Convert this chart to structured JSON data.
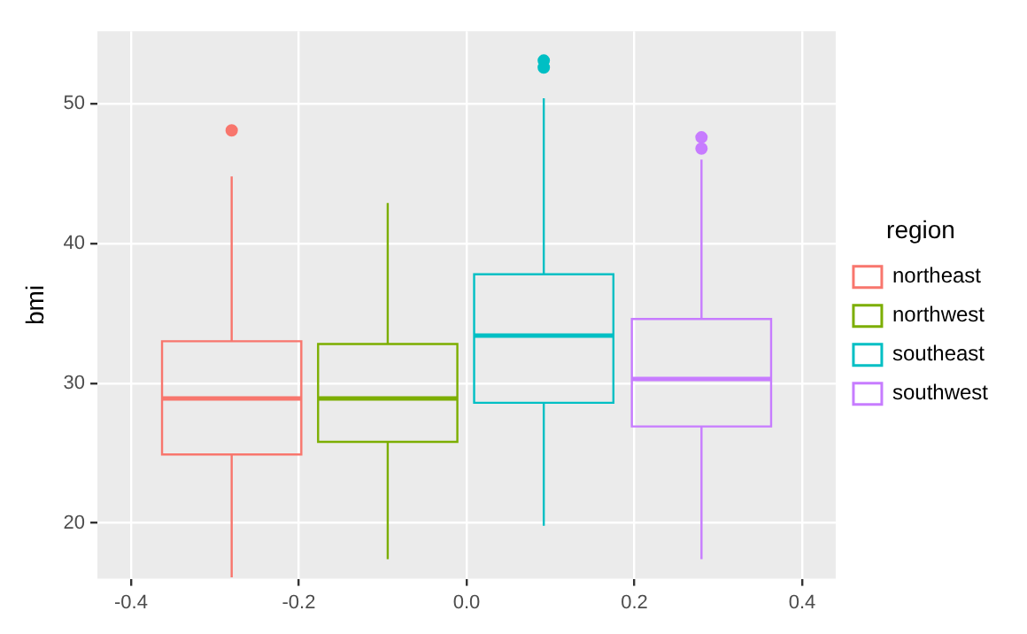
{
  "chart_data": {
    "type": "box",
    "ylabel": "bmi",
    "legend_title": "region",
    "legend": "right",
    "grid": true,
    "xlim": [
      -0.44,
      0.44
    ],
    "xticks": [
      -0.4,
      -0.2,
      {
        "value": 0,
        "label": "0.0"
      },
      0.2,
      0.4
    ],
    "ylim": [
      16,
      55.2
    ],
    "yticks": [
      20,
      30,
      40,
      50
    ],
    "series": [
      {
        "name": "northeast",
        "color": "#f8766d",
        "x": [
          -0.28
        ],
        "boxes": [
          {
            "low": 16.1,
            "q1": 24.9,
            "median": 28.9,
            "q3": 33.0,
            "high": 44.8,
            "outliers": [
              48.1
            ]
          }
        ]
      },
      {
        "name": "northwest",
        "color": "#7cae00",
        "x": [
          -0.094
        ],
        "boxes": [
          {
            "low": 17.4,
            "q1": 25.8,
            "median": 28.9,
            "q3": 32.8,
            "high": 42.9
          }
        ]
      },
      {
        "name": "southeast",
        "color": "#00bfc4",
        "x": [
          0.092
        ],
        "boxes": [
          {
            "low": 19.8,
            "q1": 28.6,
            "median": 33.4,
            "q3": 37.8,
            "high": 50.4,
            "outliers": [
              53.1,
              52.6
            ]
          }
        ]
      },
      {
        "name": "southwest",
        "color": "#c77cff",
        "x": [
          0.28
        ],
        "boxes": [
          {
            "low": 17.4,
            "q1": 26.9,
            "median": 30.3,
            "q3": 34.6,
            "high": 46.0,
            "outliers": [
              47.6,
              46.8
            ]
          }
        ]
      }
    ]
  }
}
